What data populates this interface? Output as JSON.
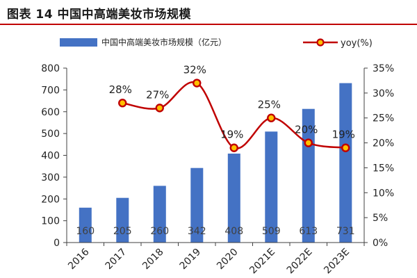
{
  "figure": {
    "title": "图表 14 中国中高端美妆市场规模"
  },
  "colors": {
    "bar": "#4472C4",
    "line": "#C00000",
    "marker_fill": "#FFC000",
    "title_rule": "#C00000",
    "axis": "#404040",
    "value_label": "#404040",
    "text": "#222222"
  },
  "chart_data": {
    "type": "bar",
    "categories": [
      "2016",
      "2017",
      "2018",
      "2019",
      "2020",
      "2021E",
      "2022E",
      "2023E"
    ],
    "series": [
      {
        "name": "中国中高端美妆市场规模（亿元）",
        "type": "bar",
        "axis": "left",
        "values": [
          160,
          205,
          260,
          342,
          408,
          509,
          613,
          731
        ],
        "labels": [
          "160",
          "205",
          "260",
          "342",
          "408",
          "509",
          "613",
          "731"
        ]
      },
      {
        "name": "yoy(%)",
        "type": "line",
        "axis": "right",
        "values": [
          null,
          28,
          27,
          32,
          19,
          25,
          20,
          19
        ],
        "labels": [
          "",
          "28%",
          "27%",
          "32%",
          "19%",
          "25%",
          "20%",
          "19%"
        ]
      }
    ],
    "y_left": {
      "range": [
        0,
        800
      ],
      "ticks": [
        0,
        100,
        200,
        300,
        400,
        500,
        600,
        700,
        800
      ],
      "tick_labels": [
        "0",
        "100",
        "200",
        "300",
        "400",
        "500",
        "600",
        "700",
        "800"
      ]
    },
    "y_right": {
      "range": [
        0,
        35
      ],
      "ticks": [
        0,
        5,
        10,
        15,
        20,
        25,
        30,
        35
      ],
      "tick_labels": [
        "0%",
        "5%",
        "10%",
        "15%",
        "20%",
        "25%",
        "30%",
        "35%"
      ]
    },
    "grid": false,
    "legend": "top",
    "line_smooth": true
  }
}
